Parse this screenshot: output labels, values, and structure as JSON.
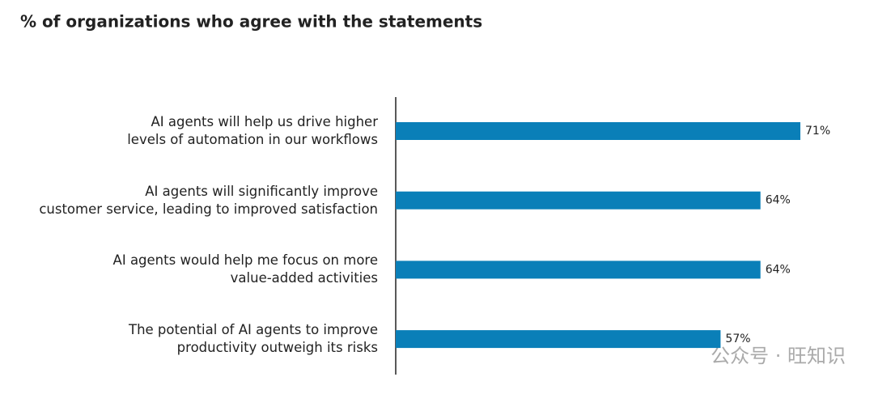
{
  "chart_data": {
    "type": "bar",
    "orientation": "horizontal",
    "title": "% of organizations who agree with the statements",
    "categories": [
      "AI agents will help us drive higher\nlevels of automation in our workflows",
      "AI agents will significantly improve\ncustomer service, leading to improved satisfaction",
      "AI agents would help me focus on more\nvalue-added activities",
      "The potential of AI agents to improve\nproductivity outweigh its risks"
    ],
    "values": [
      71,
      64,
      64,
      57
    ],
    "value_labels": [
      "71%",
      "64%",
      "64%",
      "57%"
    ],
    "color": "#0a7fb8",
    "watermark": "公众号 · 旺知识"
  }
}
